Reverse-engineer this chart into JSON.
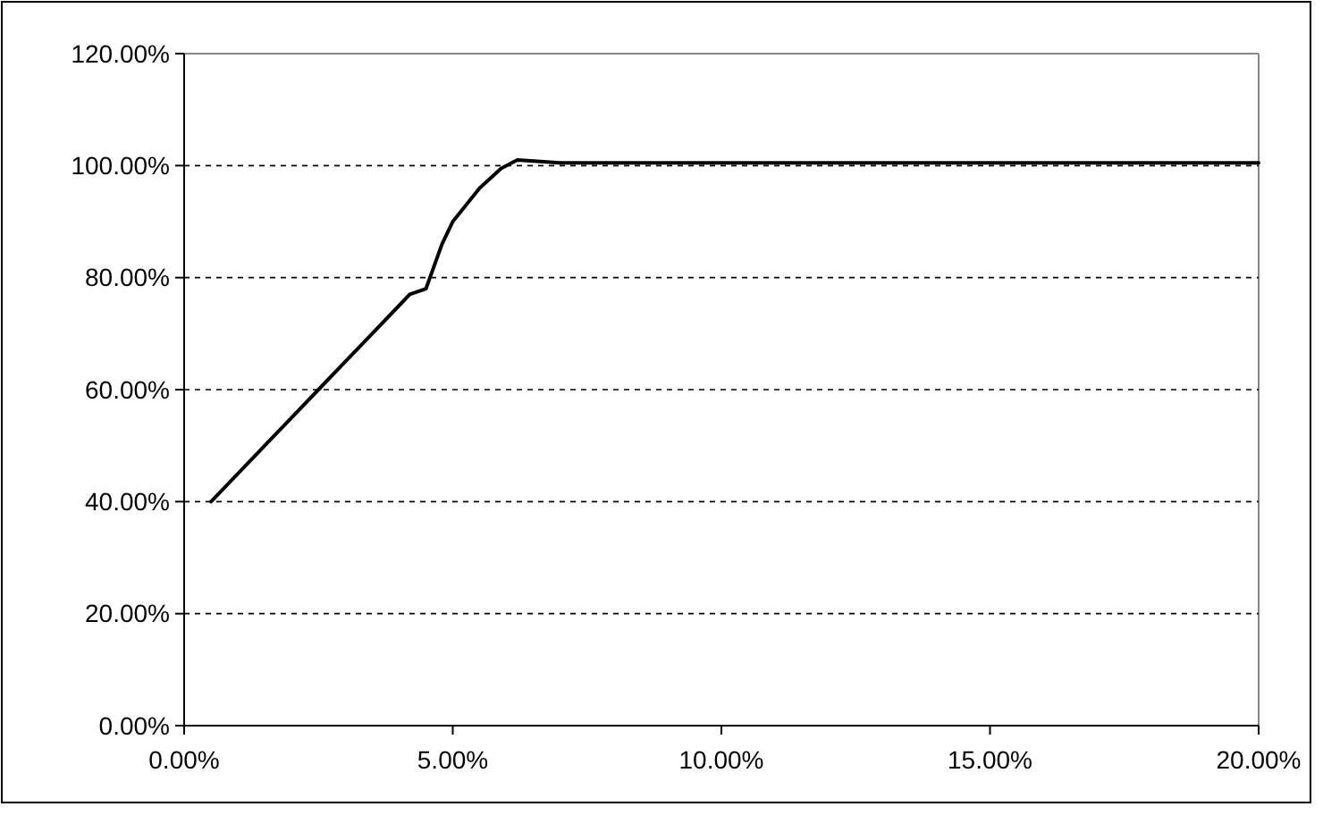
{
  "chart_data": {
    "type": "line",
    "x": [
      0.5,
      1.5,
      2,
      2.5,
      3,
      3.5,
      4,
      4.2,
      4.5,
      4.8,
      5,
      5.5,
      5.9,
      6.2,
      6.7,
      7,
      10,
      15,
      20
    ],
    "series": [
      {
        "color": "#000000",
        "values": [
          40,
          50,
          55,
          60,
          65,
          70,
          75,
          77,
          78,
          86,
          90,
          96,
          99.5,
          101,
          100.7,
          100.5,
          100.5,
          100.5,
          100.5
        ]
      }
    ],
    "xlim": [
      0,
      20
    ],
    "xticks": [
      {
        "value": 0,
        "label": "0.00%"
      },
      {
        "value": 5,
        "label": "5.00%"
      },
      {
        "value": 10,
        "label": "10.00%"
      },
      {
        "value": 15,
        "label": "15.00%"
      },
      {
        "value": 20,
        "label": "20.00%"
      }
    ],
    "ylim": [
      0,
      120
    ],
    "yticks": [
      {
        "value": 0,
        "label": "0.00%"
      },
      {
        "value": 20,
        "label": "20.00%"
      },
      {
        "value": 40,
        "label": "40.00%"
      },
      {
        "value": 60,
        "label": "60.00%"
      },
      {
        "value": 80,
        "label": "80.00%"
      },
      {
        "value": 100,
        "label": "100.00%"
      },
      {
        "value": 120,
        "label": "120.00%"
      }
    ],
    "grid": "y",
    "marker": "none",
    "line_style": "solid"
  }
}
